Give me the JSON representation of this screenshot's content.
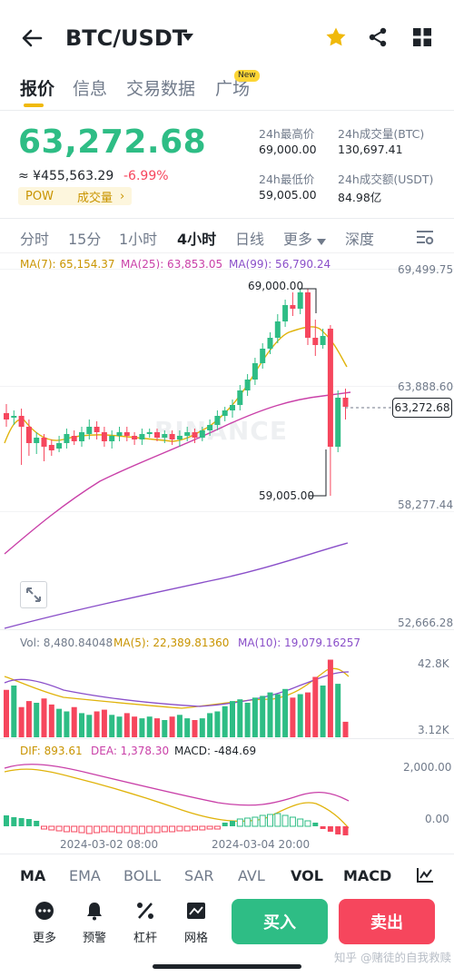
{
  "header": {
    "title": "BTC/USDT"
  },
  "tabs": [
    {
      "label": "报价",
      "active": true
    },
    {
      "label": "信息"
    },
    {
      "label": "交易数据"
    },
    {
      "label": "广场",
      "badge": "New"
    }
  ],
  "ticker": {
    "price": "63,272.68",
    "cny": "≈ ¥455,563.29",
    "change": "-6.99%",
    "tag": "POW",
    "tag_link": "成交量",
    "tag_arrow": "›",
    "stats": [
      {
        "label": "24h最高价",
        "value": "69,000.00"
      },
      {
        "label": "24h成交量(BTC)",
        "value": "130,697.41"
      },
      {
        "label": "24h最低价",
        "value": "59,005.00"
      },
      {
        "label": "24h成交额(USDT)",
        "value": "84.98亿"
      }
    ]
  },
  "intervals": [
    {
      "label": "分时"
    },
    {
      "label": "15分"
    },
    {
      "label": "1小时"
    },
    {
      "label": "4小时",
      "active": true
    },
    {
      "label": "日线"
    },
    {
      "label": "更多"
    },
    {
      "label": "深度"
    }
  ],
  "chart": {
    "ma7": "MA(7): 65,154.37",
    "ma25": "MA(25): 63,853.05",
    "ma99": "MA(99): 56,790.24",
    "axis": [
      "69,499.75",
      "63,888.60",
      "58,277.44",
      "52,666.28"
    ],
    "high_label": "69,000.00",
    "low_label": "59,005.00",
    "current": "63,272.68",
    "watermark": "BINANCE"
  },
  "volume": {
    "vol": "Vol: 8,480.84048",
    "ma5": "MA(5): 22,389.81360",
    "ma10": "MA(10): 19,079.16257",
    "axis": [
      "42.8K",
      "3.12K"
    ]
  },
  "macd": {
    "dif": "DIF: 893.61",
    "dea": "DEA: 1,378.30",
    "macd": "MACD: -484.69",
    "axis": [
      "2,000.00",
      "0.00"
    ],
    "dates": [
      "2024-03-02 08:00",
      "2024-03-04 20:00"
    ]
  },
  "indicators": [
    {
      "label": "MA"
    },
    {
      "label": "EMA"
    },
    {
      "label": "BOLL"
    },
    {
      "label": "SAR"
    },
    {
      "label": "AVL"
    },
    {
      "label": "VOL",
      "active": true
    },
    {
      "label": "MACD",
      "active": true
    }
  ],
  "bottom": {
    "items": [
      {
        "label": "更多",
        "icon": "more-icon"
      },
      {
        "label": "预警",
        "icon": "bell-icon"
      },
      {
        "label": "杠杆",
        "icon": "leverage-icon"
      },
      {
        "label": "网格",
        "icon": "grid-icon"
      }
    ],
    "buy": "买入",
    "sell": "卖出"
  },
  "footer_watermark": "知乎 @赌徒的自我救赎",
  "colors": {
    "up": "#2ebd85",
    "down": "#f6465d",
    "accent": "#f0b90b",
    "ma7": "#e0b30b",
    "ma25": "#c940a8",
    "ma99": "#8a4fc9"
  }
}
